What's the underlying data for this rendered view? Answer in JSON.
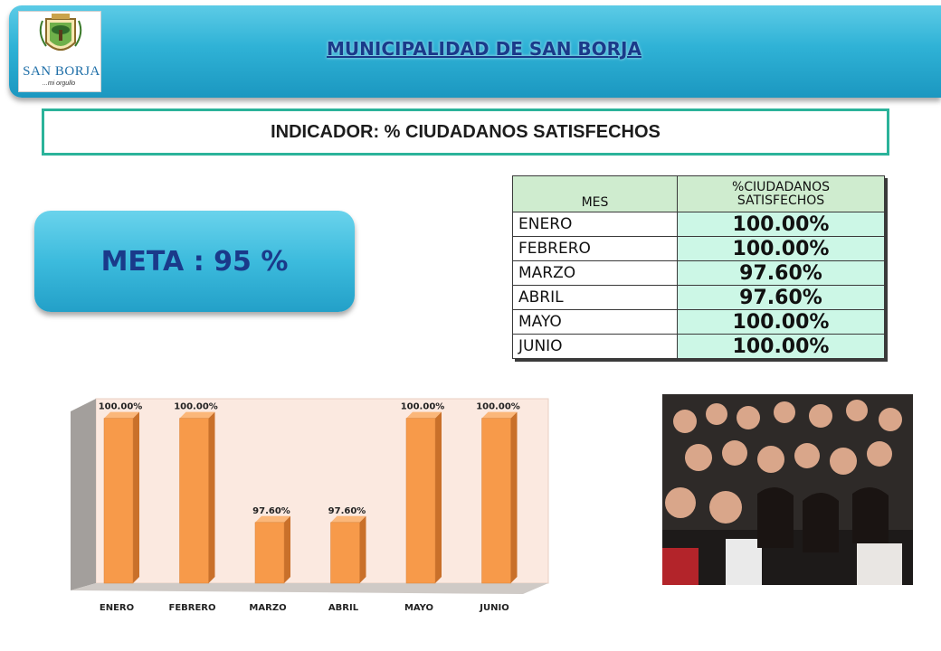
{
  "header": {
    "title": "MUNICIPALIDAD DE SAN BORJA",
    "logo_name": "SAN BORJA",
    "logo_tagline": "...mi orgullo"
  },
  "indicator": {
    "label": "INDICADOR: % CIUDADANOS SATISFECHOS"
  },
  "meta": {
    "label": "META : 95 %"
  },
  "table": {
    "headers": [
      "MES",
      "%CIUDADANOS SATISFECHOS"
    ],
    "rows": [
      {
        "mes": "ENERO",
        "valor": "100.00%"
      },
      {
        "mes": "FEBRERO",
        "valor": "100.00%"
      },
      {
        "mes": "MARZO",
        "valor": "97.60%"
      },
      {
        "mes": "ABRIL",
        "valor": "97.60%"
      },
      {
        "mes": "MAYO",
        "valor": "100.00%"
      },
      {
        "mes": "JUNIO",
        "valor": "100.00%"
      }
    ]
  },
  "chart_data": {
    "type": "bar",
    "categories": [
      "ENERO",
      "FEBRERO",
      "MARZO",
      "ABRIL",
      "MAYO",
      "JUNIO"
    ],
    "values": [
      100.0,
      100.0,
      97.6,
      97.6,
      100.0,
      100.0
    ],
    "data_labels": [
      "100.00%",
      "100.00%",
      "97.60%",
      "97.60%",
      "100.00%",
      "100.00%"
    ],
    "title": "",
    "xlabel": "",
    "ylabel": "",
    "ylim": [
      96.2,
      100.2
    ],
    "grid": false,
    "legend": "none",
    "style": "3d-column",
    "colors": {
      "bar": "#f79a4a",
      "bar_side": "#c9702a",
      "bar_top": "#fbb77a",
      "wall": "#fbe9e0",
      "side_wall": "#a39f9c",
      "floor": "#cfcac6"
    }
  },
  "photo": {
    "icon": "crowd-photo-icon"
  }
}
